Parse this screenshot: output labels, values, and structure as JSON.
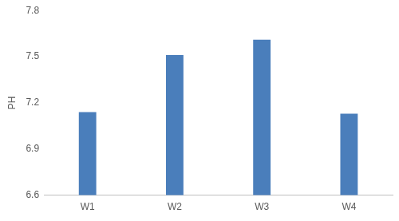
{
  "chart_data": {
    "type": "bar",
    "y_label": "PH",
    "categories": [
      "W1",
      "W2",
      "W3",
      "W4"
    ],
    "values": [
      7.14,
      7.51,
      7.61,
      7.13
    ],
    "color": "#4a7ebb",
    "ylim": [
      6.6,
      7.8
    ],
    "yticks": [
      6.6,
      6.9,
      7.2,
      7.5,
      7.8
    ],
    "grid": false
  }
}
